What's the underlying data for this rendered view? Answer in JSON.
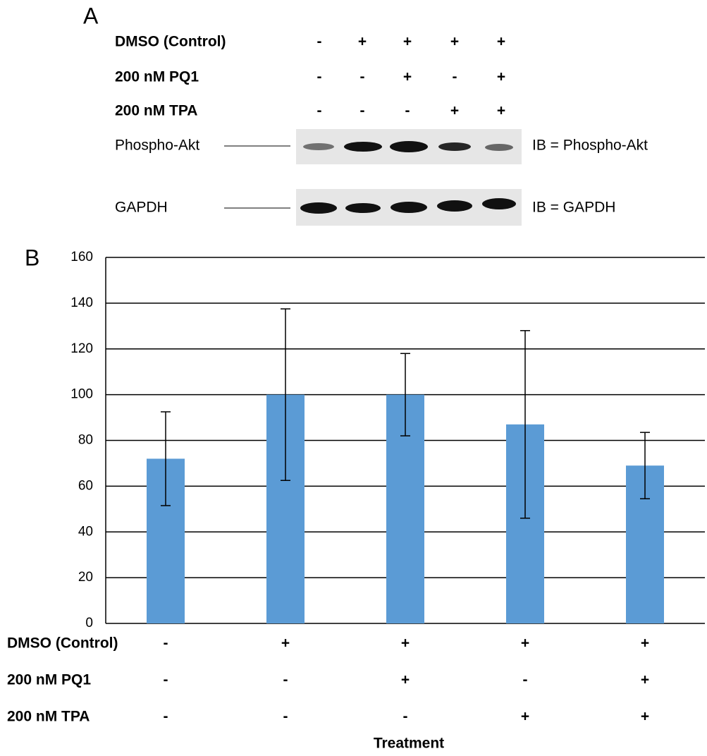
{
  "panel_a": {
    "label": "A",
    "conditions": [
      {
        "name": "DMSO (Control)",
        "signs": [
          "-",
          "+",
          "+",
          "+",
          "+"
        ]
      },
      {
        "name": "200 nM PQ1",
        "signs": [
          "-",
          "-",
          "+",
          "-",
          "+"
        ]
      },
      {
        "name": "200 nM TPA",
        "signs": [
          "-",
          "-",
          "-",
          "+",
          "+"
        ]
      }
    ],
    "blots": [
      {
        "name": "Phospho-Akt",
        "ib": "IB = Phospho-Akt"
      },
      {
        "name": "GAPDH",
        "ib": "IB = GAPDH"
      }
    ]
  },
  "chart_data": {
    "type": "bar",
    "panel_label": "B",
    "categories": [
      null,
      null,
      null,
      null,
      null
    ],
    "values": [
      72,
      100,
      100,
      87,
      69
    ],
    "errors": [
      20.5,
      37.5,
      18,
      41,
      14.5
    ],
    "color": "#5b9bd5",
    "ylim": [
      0,
      160
    ],
    "yticks": [
      0,
      20,
      40,
      60,
      80,
      100,
      120,
      140,
      160
    ],
    "grid": true,
    "conditions": [
      {
        "name": "DMSO (Control)",
        "signs": [
          "-",
          "+",
          "+",
          "+",
          "+"
        ]
      },
      {
        "name": "200 nM PQ1",
        "signs": [
          "-",
          "-",
          "+",
          "-",
          "+"
        ]
      },
      {
        "name": "200 nM TPA",
        "signs": [
          "-",
          "-",
          "-",
          "+",
          "+"
        ]
      }
    ],
    "x_label": "Treatment"
  }
}
